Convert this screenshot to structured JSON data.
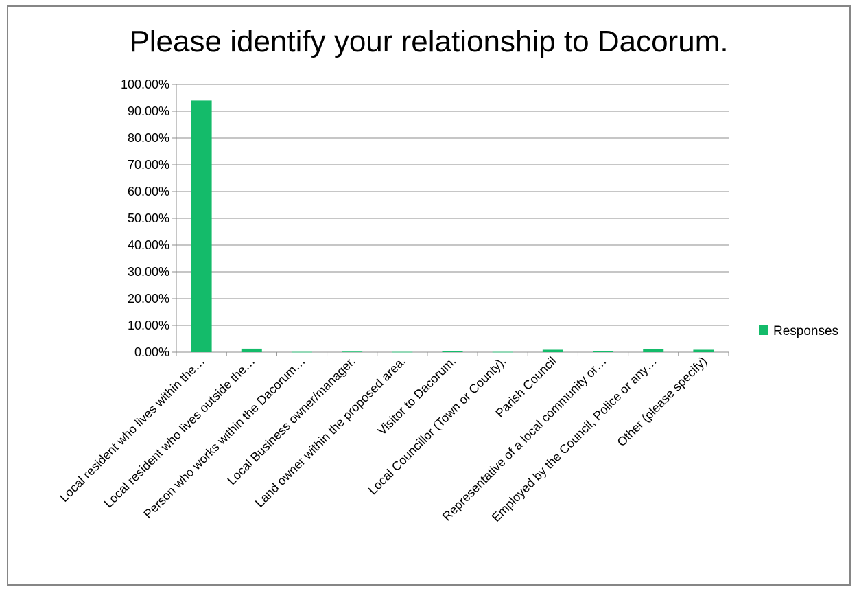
{
  "chart_data": {
    "type": "bar",
    "title": "Please identify your relationship to Dacorum.",
    "xlabel": "",
    "ylabel": "",
    "ylim": [
      0,
      100
    ],
    "ytick_step": 10,
    "ytick_labels": [
      "0.00%",
      "10.00%",
      "20.00%",
      "30.00%",
      "40.00%",
      "50.00%",
      "60.00%",
      "70.00%",
      "80.00%",
      "90.00%",
      "100.00%"
    ],
    "grid": true,
    "legend_position": "right",
    "categories": [
      "Local resident who lives within the…",
      "Local resident who lives outside the…",
      "Person who works within the Dacorum…",
      "Local Business owner/manager.",
      "Land owner within the proposed area.",
      "Visitor to Dacorum.",
      "Local Councillor (Town or County).",
      "Parish Council",
      "Representative of a local community or…",
      "Employed by the Council, Police or any…",
      "Other (please specify)"
    ],
    "series": [
      {
        "name": "Responses",
        "color": "#14bb6a",
        "values": [
          94.0,
          1.3,
          0.1,
          0.2,
          0.1,
          0.4,
          0.1,
          0.9,
          0.3,
          1.1,
          0.9
        ]
      }
    ]
  }
}
